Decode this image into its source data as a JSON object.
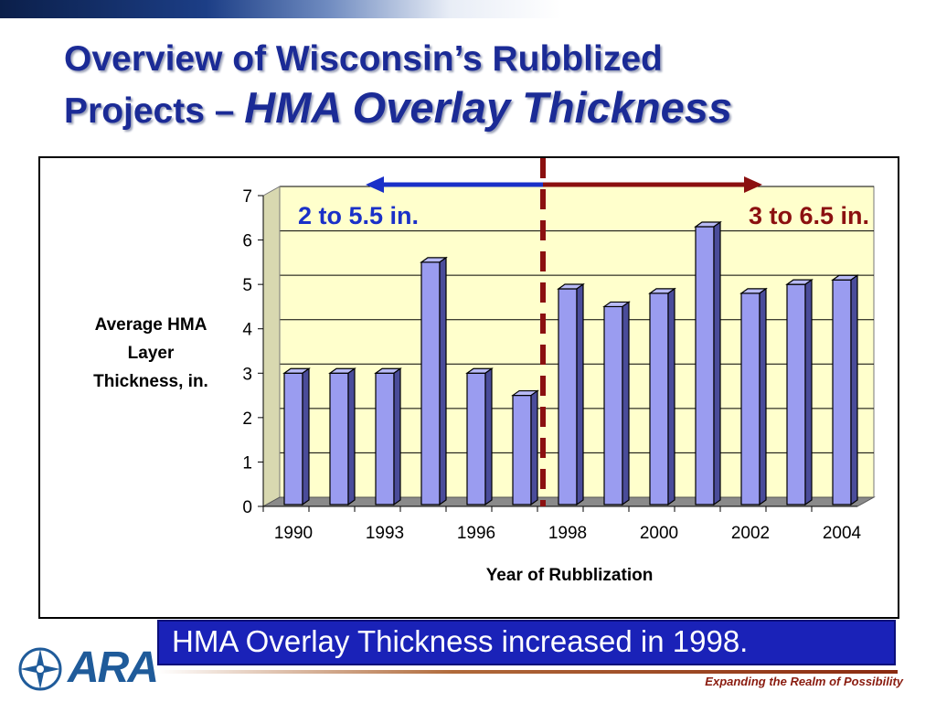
{
  "slide": {
    "title_line1": "Overview of Wisconsin’s Rubblized",
    "title_line2_plain": "Projects – ",
    "title_line2_italic": "HMA Overlay Thickness",
    "footer_text": "HMA Overlay Thickness increased in 1998.",
    "logo_text": "ARA",
    "tagline": "Expanding the Realm of Possibility"
  },
  "colors": {
    "title": "#1b2b96",
    "bar": "#9a9cf0",
    "plot_bg": "#ffffcc",
    "divider": "#8b1010",
    "arrow_left": "#1a30c8",
    "arrow_right": "#8b1010",
    "footer_bg": "#1a22b8"
  },
  "chart_data": {
    "type": "bar",
    "title": "",
    "xlabel": "Year of Rubblization",
    "ylabel": "Average HMA Layer Thickness, in.",
    "ylim": [
      0,
      7
    ],
    "yticks": [
      "0",
      "1",
      "2",
      "3",
      "4",
      "5",
      "6",
      "7"
    ],
    "xtick_labels": [
      "1990",
      "1993",
      "1996",
      "1998",
      "2000",
      "2002",
      "2004"
    ],
    "values": [
      3,
      3,
      3,
      5.5,
      3,
      2.5,
      4.9,
      4.5,
      4.8,
      6.3,
      4.8,
      5.0,
      5.1
    ],
    "grid": true,
    "annotations": {
      "left_range": "2 to 5.5 in.",
      "right_range": "3 to 6.5 in.",
      "divider_after_bar": 6
    }
  }
}
